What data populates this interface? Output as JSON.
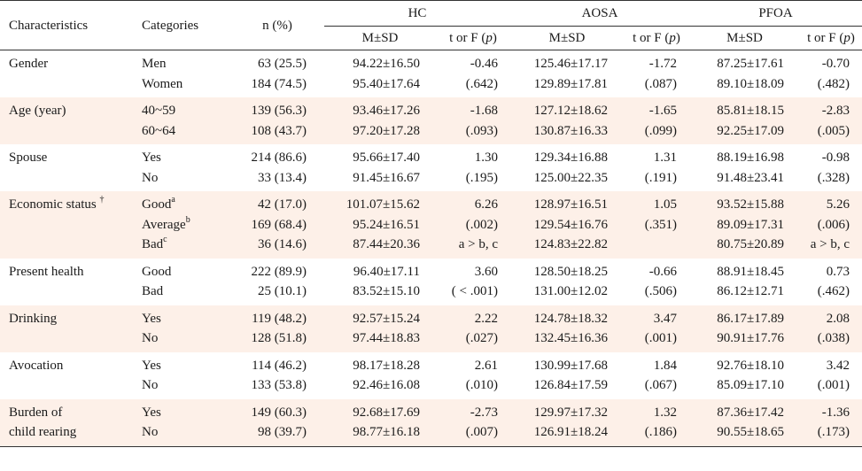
{
  "header": {
    "characteristics": "Characteristics",
    "categories": "Categories",
    "n_pct": "n (%)",
    "groups": [
      "HC",
      "AOSA",
      "PFOA"
    ],
    "msd": "M±SD",
    "tf_prefix": "t or F (",
    "tf_p": "p",
    "tf_suffix": ")"
  },
  "rows": [
    {
      "characteristic": [
        "Gender"
      ],
      "sup": "",
      "categories": [
        {
          "label": "Men",
          "sup": ""
        },
        {
          "label": "Women",
          "sup": ""
        }
      ],
      "n": [
        "63 (25.5)",
        "184 (74.5)"
      ],
      "hc": {
        "msd": [
          "94.22±16.50",
          "95.40±17.64"
        ],
        "tf": [
          "-0.46",
          "(.642)"
        ]
      },
      "aosa": {
        "msd": [
          "125.46±17.17",
          "129.89±17.81"
        ],
        "tf": [
          "-1.72",
          "(.087)"
        ]
      },
      "pfoa": {
        "msd": [
          "87.25±17.61",
          "89.10±18.09"
        ],
        "tf": [
          "-0.70",
          "(.482)"
        ]
      }
    },
    {
      "characteristic": [
        "Age (year)"
      ],
      "sup": "",
      "categories": [
        {
          "label": "40~59",
          "sup": ""
        },
        {
          "label": "60~64",
          "sup": ""
        }
      ],
      "n": [
        "139 (56.3)",
        "108 (43.7)"
      ],
      "hc": {
        "msd": [
          "93.46±17.26",
          "97.20±17.28"
        ],
        "tf": [
          "-1.68",
          "(.093)"
        ]
      },
      "aosa": {
        "msd": [
          "127.12±18.62",
          "130.87±16.33"
        ],
        "tf": [
          "-1.65",
          "(.099)"
        ]
      },
      "pfoa": {
        "msd": [
          "85.81±18.15",
          "92.25±17.09"
        ],
        "tf": [
          "-2.83",
          "(.005)"
        ]
      }
    },
    {
      "characteristic": [
        "Spouse"
      ],
      "sup": "",
      "categories": [
        {
          "label": "Yes",
          "sup": ""
        },
        {
          "label": "No",
          "sup": ""
        }
      ],
      "n": [
        "214 (86.6)",
        "33 (13.4)"
      ],
      "hc": {
        "msd": [
          "95.66±17.40",
          "91.45±16.67"
        ],
        "tf": [
          "1.30",
          "(.195)"
        ]
      },
      "aosa": {
        "msd": [
          "129.34±16.88",
          "125.00±22.35"
        ],
        "tf": [
          "1.31",
          "(.191)"
        ]
      },
      "pfoa": {
        "msd": [
          "88.19±16.98",
          "91.48±23.41"
        ],
        "tf": [
          "-0.98",
          "(.328)"
        ]
      }
    },
    {
      "characteristic": [
        "Economic status"
      ],
      "sup": "†",
      "categories": [
        {
          "label": "Good",
          "sup": "a"
        },
        {
          "label": "Average",
          "sup": "b"
        },
        {
          "label": "Bad",
          "sup": "c"
        }
      ],
      "n": [
        "42 (17.0)",
        "169 (68.4)",
        "36 (14.6)"
      ],
      "hc": {
        "msd": [
          "101.07±15.62",
          "95.24±16.51",
          "87.44±20.36"
        ],
        "tf": [
          "6.26",
          "(.002)",
          "a > b, c"
        ]
      },
      "aosa": {
        "msd": [
          "128.97±16.51",
          "129.54±16.76",
          "124.83±22.82"
        ],
        "tf": [
          "1.05",
          "(.351)",
          ""
        ]
      },
      "pfoa": {
        "msd": [
          "93.52±15.88",
          "89.09±17.31",
          "80.75±20.89"
        ],
        "tf": [
          "5.26",
          "(.006)",
          "a > b, c"
        ]
      }
    },
    {
      "characteristic": [
        "Present health"
      ],
      "sup": "",
      "categories": [
        {
          "label": "Good",
          "sup": ""
        },
        {
          "label": "Bad",
          "sup": ""
        }
      ],
      "n": [
        "222 (89.9)",
        "25 (10.1)"
      ],
      "hc": {
        "msd": [
          "96.40±17.11",
          "83.52±15.10"
        ],
        "tf": [
          "3.60",
          "( < .001)"
        ]
      },
      "aosa": {
        "msd": [
          "128.50±18.25",
          "131.00±12.02"
        ],
        "tf": [
          "-0.66",
          "(.506)"
        ]
      },
      "pfoa": {
        "msd": [
          "88.91±18.45",
          "86.12±12.71"
        ],
        "tf": [
          "0.73",
          "(.462)"
        ]
      }
    },
    {
      "characteristic": [
        "Drinking"
      ],
      "sup": "",
      "categories": [
        {
          "label": "Yes",
          "sup": ""
        },
        {
          "label": "No",
          "sup": ""
        }
      ],
      "n": [
        "119 (48.2)",
        "128 (51.8)"
      ],
      "hc": {
        "msd": [
          "92.57±15.24",
          "97.44±18.83"
        ],
        "tf": [
          "2.22",
          "(.027)"
        ]
      },
      "aosa": {
        "msd": [
          "124.78±18.32",
          "132.45±16.36"
        ],
        "tf": [
          "3.47",
          "(.001)"
        ]
      },
      "pfoa": {
        "msd": [
          "86.17±17.89",
          "90.91±17.76"
        ],
        "tf": [
          "2.08",
          "(.038)"
        ]
      }
    },
    {
      "characteristic": [
        "Avocation"
      ],
      "sup": "",
      "categories": [
        {
          "label": "Yes",
          "sup": ""
        },
        {
          "label": "No",
          "sup": ""
        }
      ],
      "n": [
        "114 (46.2)",
        "133 (53.8)"
      ],
      "hc": {
        "msd": [
          "98.17±18.28",
          "92.46±16.08"
        ],
        "tf": [
          "2.61",
          "(.010)"
        ]
      },
      "aosa": {
        "msd": [
          "130.99±17.68",
          "126.84±17.59"
        ],
        "tf": [
          "1.84",
          "(.067)"
        ]
      },
      "pfoa": {
        "msd": [
          "92.76±18.10",
          "85.09±17.10"
        ],
        "tf": [
          "3.42",
          "(.001)"
        ]
      }
    },
    {
      "characteristic": [
        "Burden of",
        "child rearing"
      ],
      "sup": "",
      "categories": [
        {
          "label": "Yes",
          "sup": ""
        },
        {
          "label": "No",
          "sup": ""
        }
      ],
      "n": [
        "149 (60.3)",
        "98 (39.7)"
      ],
      "hc": {
        "msd": [
          "92.68±17.69",
          "98.77±16.18"
        ],
        "tf": [
          "-2.73",
          "(.007)"
        ]
      },
      "aosa": {
        "msd": [
          "129.97±17.32",
          "126.91±18.24"
        ],
        "tf": [
          "1.32",
          "(.186)"
        ]
      },
      "pfoa": {
        "msd": [
          "87.36±17.42",
          "90.55±18.65"
        ],
        "tf": [
          "-1.36",
          "(.173)"
        ]
      }
    }
  ]
}
